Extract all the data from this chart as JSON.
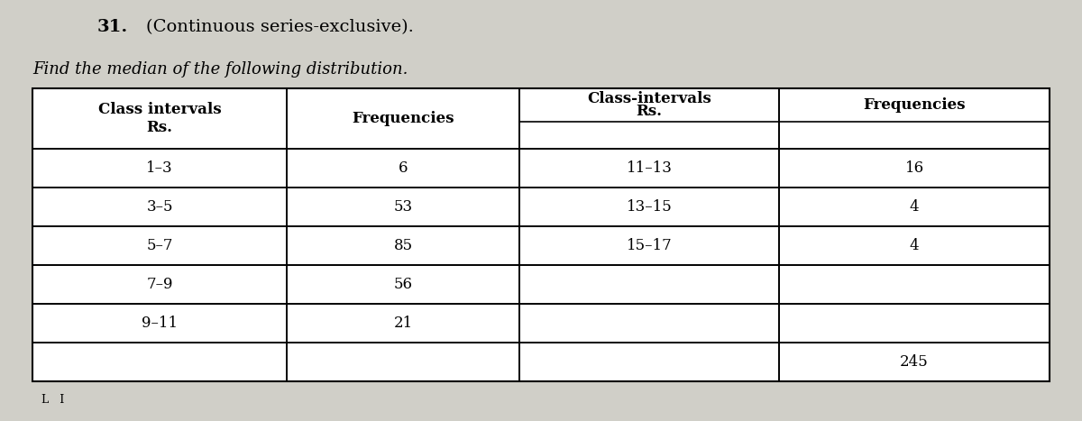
{
  "title_number": "31.",
  "title_main": "(Continuous series-exclusive).",
  "subtitle": "Find the median of the following distribution.",
  "bg_color": "#d0cfc8",
  "left_table": {
    "col1_header_line1": "Class intervals",
    "col1_header_line2": "Rs.",
    "col2_header": "Frequencies",
    "rows": [
      [
        "1–3",
        "6"
      ],
      [
        "3–5",
        "53"
      ],
      [
        "5–7",
        "85"
      ],
      [
        "7–9",
        "56"
      ],
      [
        "9–11",
        "21"
      ]
    ]
  },
  "right_table": {
    "col1_header_line1": "Class-intervals",
    "col1_header_line2": "Rs.",
    "col2_header": "Frequencies",
    "rows": [
      [
        "11–13",
        "16"
      ],
      [
        "13–15",
        "4"
      ],
      [
        "15–17",
        "4"
      ],
      [
        "",
        ""
      ],
      [
        "",
        ""
      ]
    ],
    "footer_val": "245"
  },
  "font_size_title": 14,
  "font_size_subtitle": 13,
  "font_size_table": 12
}
